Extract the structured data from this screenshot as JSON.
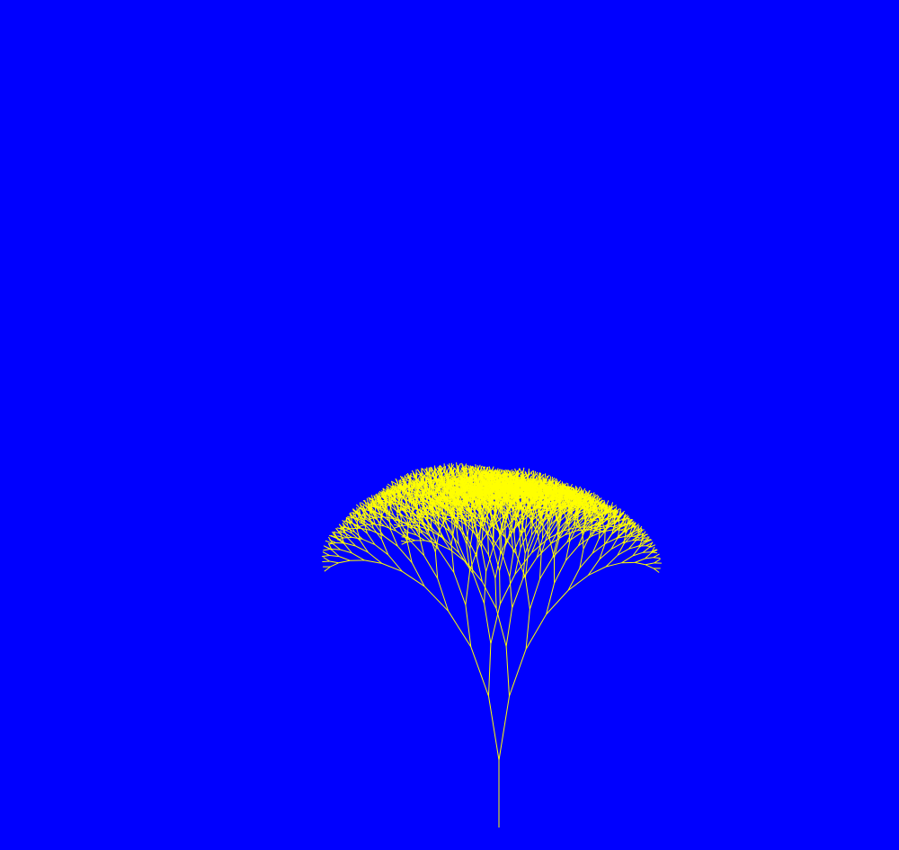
{
  "scene": {
    "background_color": "#0000ff",
    "stroke_color": "#ffff00",
    "subject": "fractal-tree"
  }
}
